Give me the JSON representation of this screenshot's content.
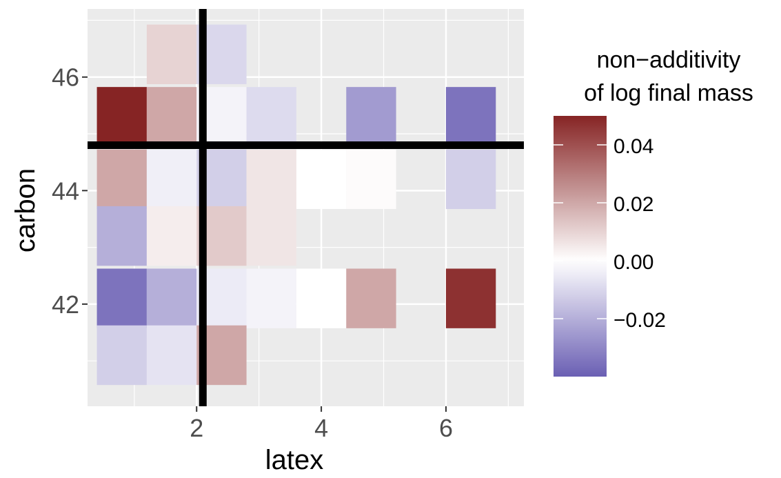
{
  "chart_data": {
    "type": "heatmap",
    "xlabel": "latex",
    "ylabel": "carbon",
    "xlim": [
      0.25,
      7.25
    ],
    "ylim": [
      40.2,
      47.2
    ],
    "x_ticks": [
      2,
      4,
      6
    ],
    "y_ticks": [
      42,
      44,
      46
    ],
    "x_minor": [
      1,
      3,
      5,
      7
    ],
    "y_minor": [
      41,
      43,
      45,
      47
    ],
    "cell_width": 0.8,
    "cell_height": 1.05,
    "legend": {
      "title_lines": [
        "non−additivity",
        "of log final mass"
      ],
      "ticks": [
        0.04,
        0.02,
        0.0,
        -0.02
      ],
      "tick_labels": [
        "0.04",
        "0.02",
        "0.00",
        "−0.02"
      ],
      "range": [
        -0.04,
        0.05
      ],
      "low_color": "#6a5fb3",
      "mid_color": "#ffffff",
      "high_color": "#862424",
      "position": "right"
    },
    "reference_lines": {
      "vertical_x": 2.1,
      "horizontal_y": 44.8
    },
    "cells": [
      {
        "x": 1.6,
        "y": 46.4,
        "value": 0.01
      },
      {
        "x": 2.4,
        "y": 46.4,
        "value": -0.01
      },
      {
        "x": 0.8,
        "y": 45.3,
        "value": 0.05
      },
      {
        "x": 1.6,
        "y": 45.3,
        "value": 0.02
      },
      {
        "x": 2.4,
        "y": 45.3,
        "value": -0.003
      },
      {
        "x": 3.2,
        "y": 45.3,
        "value": -0.009
      },
      {
        "x": 4.8,
        "y": 45.3,
        "value": -0.025
      },
      {
        "x": 6.4,
        "y": 45.3,
        "value": -0.035
      },
      {
        "x": 0.8,
        "y": 44.2,
        "value": 0.02
      },
      {
        "x": 1.6,
        "y": 44.2,
        "value": -0.004
      },
      {
        "x": 2.4,
        "y": 44.2,
        "value": -0.012
      },
      {
        "x": 3.2,
        "y": 44.2,
        "value": 0.006
      },
      {
        "x": 4.0,
        "y": 44.2,
        "value": 0.0
      },
      {
        "x": 4.8,
        "y": 44.2,
        "value": 0.001
      },
      {
        "x": 6.4,
        "y": 44.2,
        "value": -0.012
      },
      {
        "x": 0.8,
        "y": 43.2,
        "value": -0.02
      },
      {
        "x": 1.6,
        "y": 43.2,
        "value": 0.004
      },
      {
        "x": 2.4,
        "y": 43.2,
        "value": 0.012
      },
      {
        "x": 3.2,
        "y": 43.2,
        "value": 0.006
      },
      {
        "x": 0.8,
        "y": 42.1,
        "value": -0.035
      },
      {
        "x": 1.6,
        "y": 42.1,
        "value": -0.02
      },
      {
        "x": 2.4,
        "y": 42.1,
        "value": -0.005
      },
      {
        "x": 3.2,
        "y": 42.1,
        "value": -0.003
      },
      {
        "x": 4.0,
        "y": 42.1,
        "value": 0.0
      },
      {
        "x": 4.8,
        "y": 42.1,
        "value": 0.02
      },
      {
        "x": 6.4,
        "y": 42.1,
        "value": 0.047
      },
      {
        "x": 0.8,
        "y": 41.1,
        "value": -0.012
      },
      {
        "x": 1.6,
        "y": 41.1,
        "value": -0.007
      },
      {
        "x": 2.4,
        "y": 41.1,
        "value": 0.02
      }
    ]
  }
}
